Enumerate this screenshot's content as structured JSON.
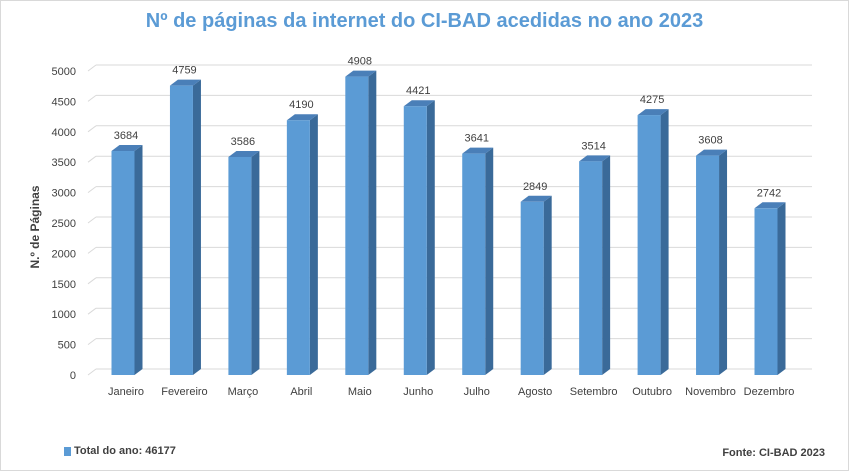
{
  "chart_data": {
    "type": "bar",
    "title": "Nº de páginas da internet do CI-BAD acedidas no ano 2023",
    "xlabel": "",
    "ylabel": "N.º de Páginas",
    "categories": [
      "Janeiro",
      "Fevereiro",
      "Março",
      "Abril",
      "Maio",
      "Junho",
      "Julho",
      "Agosto",
      "Setembro",
      "Outubro",
      "Novembro",
      "Dezembro"
    ],
    "values": [
      3684,
      4759,
      3586,
      4190,
      4908,
      4421,
      3641,
      2849,
      3514,
      4275,
      3608,
      2742
    ],
    "ylim": [
      0,
      5000
    ],
    "yticks": [
      0,
      500,
      1000,
      1500,
      2000,
      2500,
      3000,
      3500,
      4000,
      4500,
      5000
    ],
    "grid": true,
    "style": "3d-column",
    "bar_color": "#5b9bd5",
    "legend": {
      "label": "Total do ano: 46177",
      "placement": "bottom-left"
    },
    "source": "Fonte: CI-BAD  2023"
  }
}
